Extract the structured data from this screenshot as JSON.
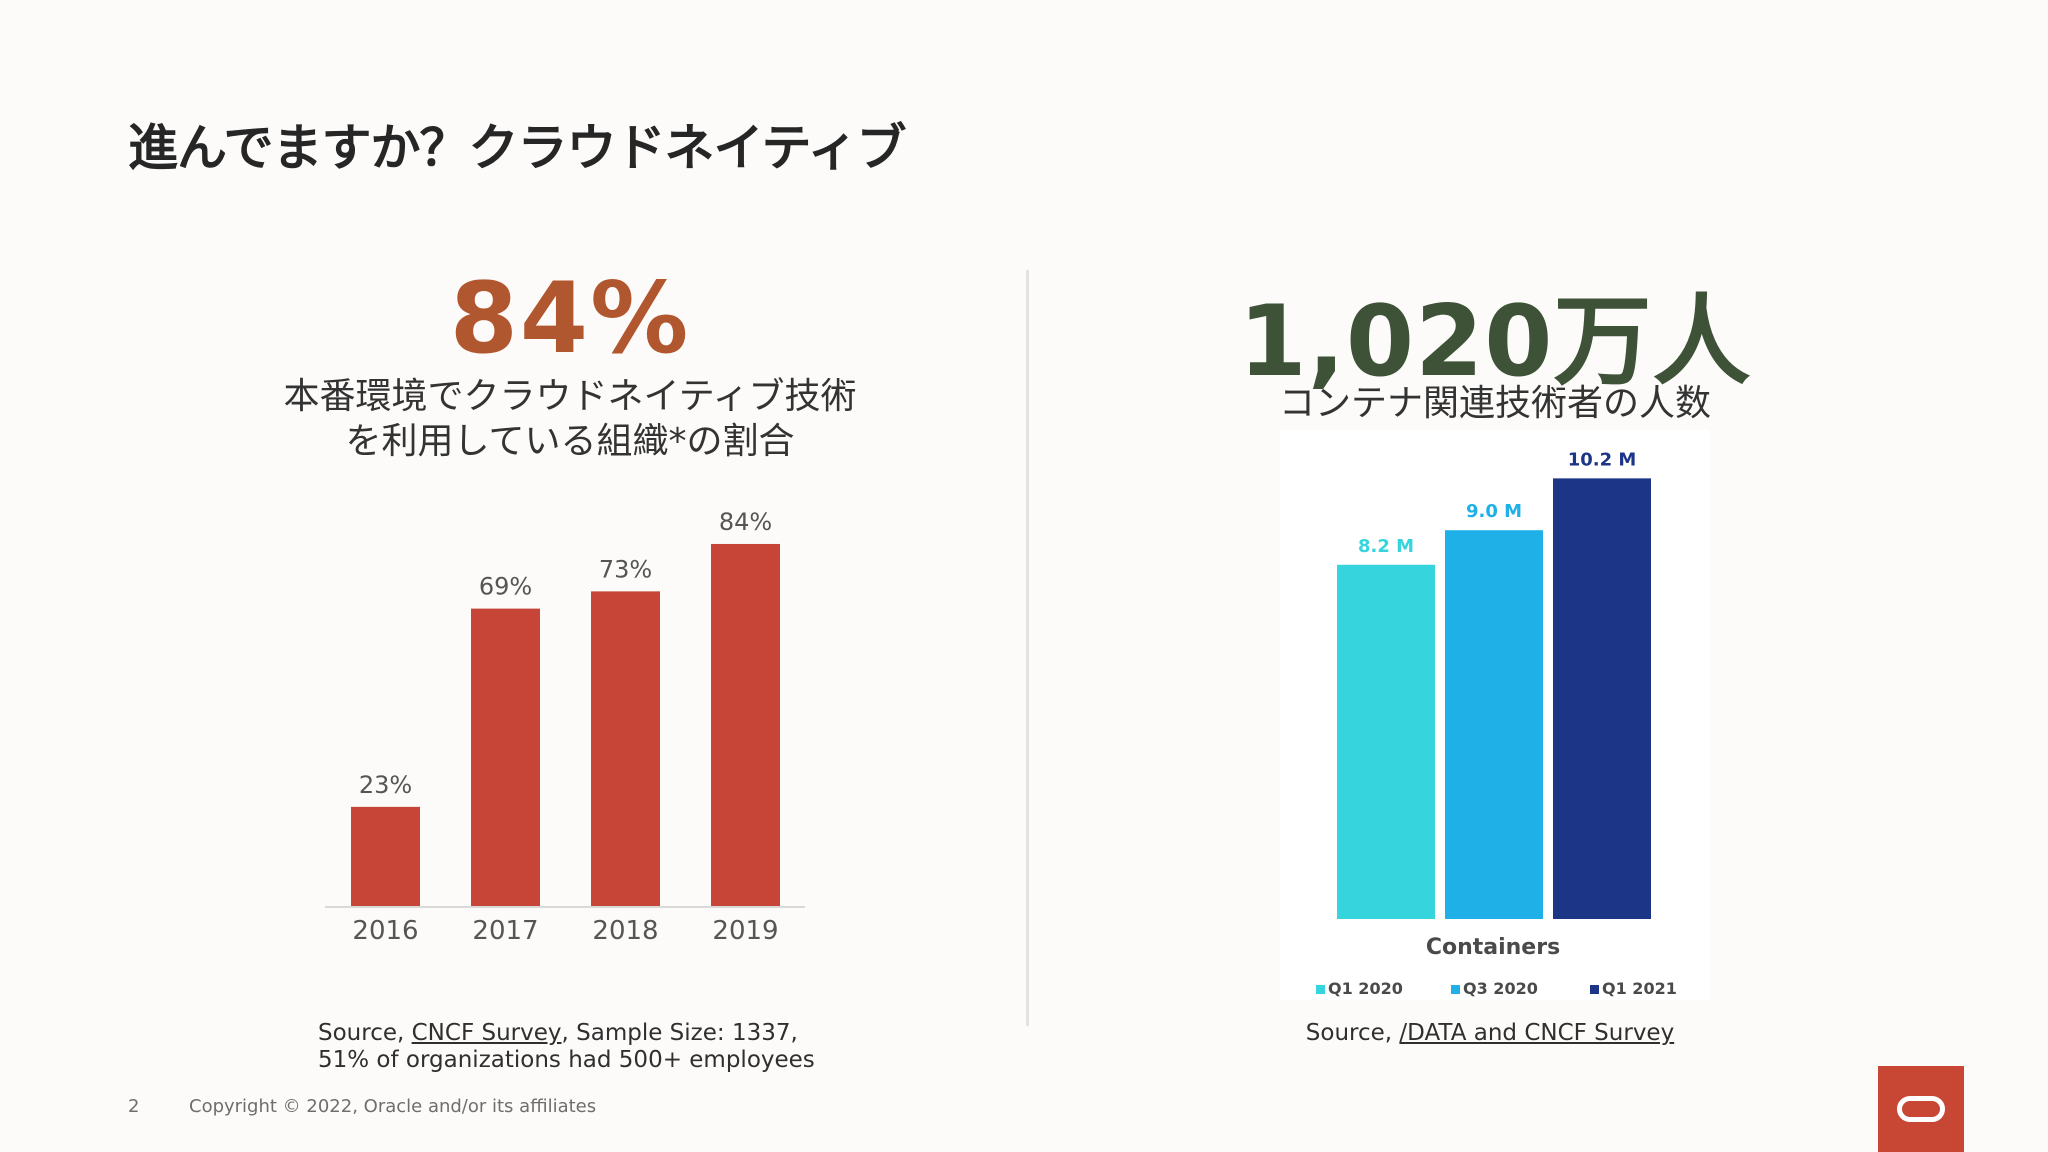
{
  "slide": {
    "title": "進んでますか？クラウドネイティブ",
    "page_number": "2",
    "copyright": "Copyright © 2022, Oracle and/or its affiliates"
  },
  "left": {
    "big_stat": "84%",
    "caption_line1": "本番環境でクラウドネイティブ技術",
    "caption_line2": "を利用している組織*の割合",
    "source_prefix": "Source, ",
    "source_link": "CNCF Survey",
    "source_suffix": ", Sample Size: 1337,",
    "source_line2": "51% of organizations had 500+ employees"
  },
  "right": {
    "big_stat": "1,020万人",
    "caption": "コンテナ関連技術者の人数",
    "source_prefix": "Source, ",
    "source_link": "/DATA and CNCF Survey"
  },
  "colors": {
    "left_bar": "#c64536",
    "right_q1_2020": "#36d5de",
    "right_q3_2020": "#1eb0e6",
    "right_q1_2021": "#1d3587"
  },
  "chart_data": [
    {
      "type": "bar",
      "title": "",
      "categories": [
        "2016",
        "2017",
        "2018",
        "2019"
      ],
      "values": [
        23,
        69,
        73,
        84
      ],
      "value_labels": [
        "23%",
        "69%",
        "73%",
        "84%"
      ],
      "ylim": [
        0,
        100
      ],
      "xlabel": "",
      "ylabel": "",
      "grid": false
    },
    {
      "type": "bar",
      "title": "",
      "xlabel": "Containers",
      "categories": [
        "Q1 2020",
        "Q3 2020",
        "Q1 2021"
      ],
      "values": [
        8.2,
        9.0,
        10.2
      ],
      "value_labels": [
        "8.2 M",
        "9.0 M",
        "10.2 M"
      ],
      "legend": [
        "Q1 2020",
        "Q3 2020",
        "Q1 2021"
      ],
      "legend_position": "bottom",
      "ylim": [
        0,
        10.7
      ],
      "grid": false
    }
  ]
}
